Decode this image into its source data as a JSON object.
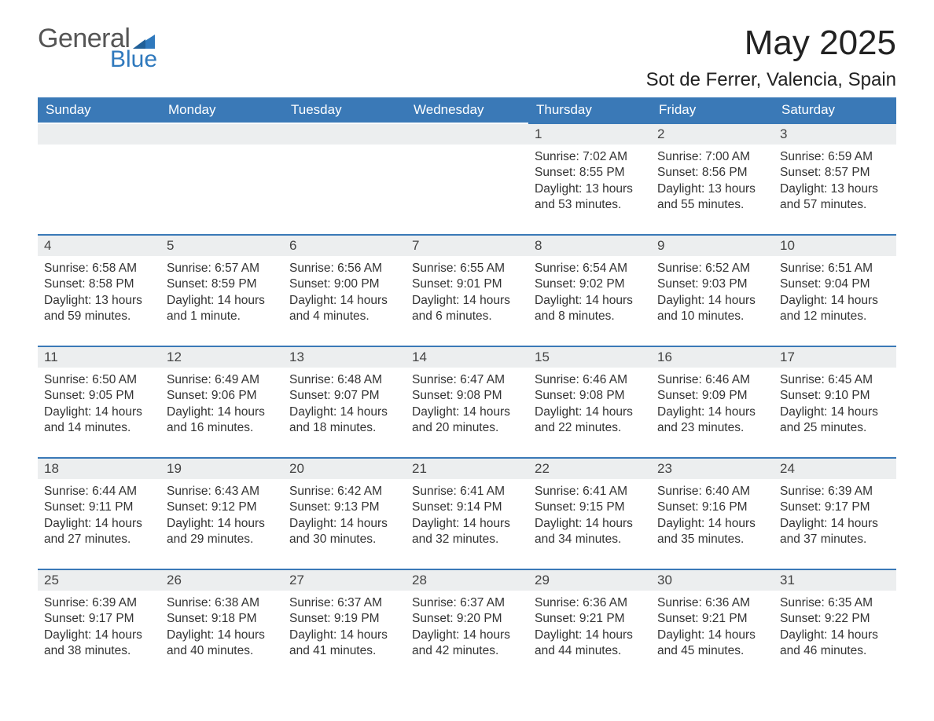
{
  "logo": {
    "text_general": "General",
    "text_blue": "Blue",
    "accent_color": "#2f79bd"
  },
  "title": "May 2025",
  "location": "Sot de Ferrer, Valencia, Spain",
  "colors": {
    "header_bg": "#3a79b7",
    "header_text": "#ffffff",
    "daynum_bg": "#eceeef",
    "cell_border": "#3a79b7",
    "page_bg": "#ffffff",
    "text": "#333333"
  },
  "weekdays": [
    "Sunday",
    "Monday",
    "Tuesday",
    "Wednesday",
    "Thursday",
    "Friday",
    "Saturday"
  ],
  "weeks": [
    [
      null,
      null,
      null,
      null,
      {
        "n": "1",
        "sunrise": "7:02 AM",
        "sunset": "8:55 PM",
        "daylight": "13 hours and 53 minutes."
      },
      {
        "n": "2",
        "sunrise": "7:00 AM",
        "sunset": "8:56 PM",
        "daylight": "13 hours and 55 minutes."
      },
      {
        "n": "3",
        "sunrise": "6:59 AM",
        "sunset": "8:57 PM",
        "daylight": "13 hours and 57 minutes."
      }
    ],
    [
      {
        "n": "4",
        "sunrise": "6:58 AM",
        "sunset": "8:58 PM",
        "daylight": "13 hours and 59 minutes."
      },
      {
        "n": "5",
        "sunrise": "6:57 AM",
        "sunset": "8:59 PM",
        "daylight": "14 hours and 1 minute."
      },
      {
        "n": "6",
        "sunrise": "6:56 AM",
        "sunset": "9:00 PM",
        "daylight": "14 hours and 4 minutes."
      },
      {
        "n": "7",
        "sunrise": "6:55 AM",
        "sunset": "9:01 PM",
        "daylight": "14 hours and 6 minutes."
      },
      {
        "n": "8",
        "sunrise": "6:54 AM",
        "sunset": "9:02 PM",
        "daylight": "14 hours and 8 minutes."
      },
      {
        "n": "9",
        "sunrise": "6:52 AM",
        "sunset": "9:03 PM",
        "daylight": "14 hours and 10 minutes."
      },
      {
        "n": "10",
        "sunrise": "6:51 AM",
        "sunset": "9:04 PM",
        "daylight": "14 hours and 12 minutes."
      }
    ],
    [
      {
        "n": "11",
        "sunrise": "6:50 AM",
        "sunset": "9:05 PM",
        "daylight": "14 hours and 14 minutes."
      },
      {
        "n": "12",
        "sunrise": "6:49 AM",
        "sunset": "9:06 PM",
        "daylight": "14 hours and 16 minutes."
      },
      {
        "n": "13",
        "sunrise": "6:48 AM",
        "sunset": "9:07 PM",
        "daylight": "14 hours and 18 minutes."
      },
      {
        "n": "14",
        "sunrise": "6:47 AM",
        "sunset": "9:08 PM",
        "daylight": "14 hours and 20 minutes."
      },
      {
        "n": "15",
        "sunrise": "6:46 AM",
        "sunset": "9:08 PM",
        "daylight": "14 hours and 22 minutes."
      },
      {
        "n": "16",
        "sunrise": "6:46 AM",
        "sunset": "9:09 PM",
        "daylight": "14 hours and 23 minutes."
      },
      {
        "n": "17",
        "sunrise": "6:45 AM",
        "sunset": "9:10 PM",
        "daylight": "14 hours and 25 minutes."
      }
    ],
    [
      {
        "n": "18",
        "sunrise": "6:44 AM",
        "sunset": "9:11 PM",
        "daylight": "14 hours and 27 minutes."
      },
      {
        "n": "19",
        "sunrise": "6:43 AM",
        "sunset": "9:12 PM",
        "daylight": "14 hours and 29 minutes."
      },
      {
        "n": "20",
        "sunrise": "6:42 AM",
        "sunset": "9:13 PM",
        "daylight": "14 hours and 30 minutes."
      },
      {
        "n": "21",
        "sunrise": "6:41 AM",
        "sunset": "9:14 PM",
        "daylight": "14 hours and 32 minutes."
      },
      {
        "n": "22",
        "sunrise": "6:41 AM",
        "sunset": "9:15 PM",
        "daylight": "14 hours and 34 minutes."
      },
      {
        "n": "23",
        "sunrise": "6:40 AM",
        "sunset": "9:16 PM",
        "daylight": "14 hours and 35 minutes."
      },
      {
        "n": "24",
        "sunrise": "6:39 AM",
        "sunset": "9:17 PM",
        "daylight": "14 hours and 37 minutes."
      }
    ],
    [
      {
        "n": "25",
        "sunrise": "6:39 AM",
        "sunset": "9:17 PM",
        "daylight": "14 hours and 38 minutes."
      },
      {
        "n": "26",
        "sunrise": "6:38 AM",
        "sunset": "9:18 PM",
        "daylight": "14 hours and 40 minutes."
      },
      {
        "n": "27",
        "sunrise": "6:37 AM",
        "sunset": "9:19 PM",
        "daylight": "14 hours and 41 minutes."
      },
      {
        "n": "28",
        "sunrise": "6:37 AM",
        "sunset": "9:20 PM",
        "daylight": "14 hours and 42 minutes."
      },
      {
        "n": "29",
        "sunrise": "6:36 AM",
        "sunset": "9:21 PM",
        "daylight": "14 hours and 44 minutes."
      },
      {
        "n": "30",
        "sunrise": "6:36 AM",
        "sunset": "9:21 PM",
        "daylight": "14 hours and 45 minutes."
      },
      {
        "n": "31",
        "sunrise": "6:35 AM",
        "sunset": "9:22 PM",
        "daylight": "14 hours and 46 minutes."
      }
    ]
  ],
  "labels": {
    "sunrise": "Sunrise:",
    "sunset": "Sunset:",
    "daylight": "Daylight:"
  }
}
